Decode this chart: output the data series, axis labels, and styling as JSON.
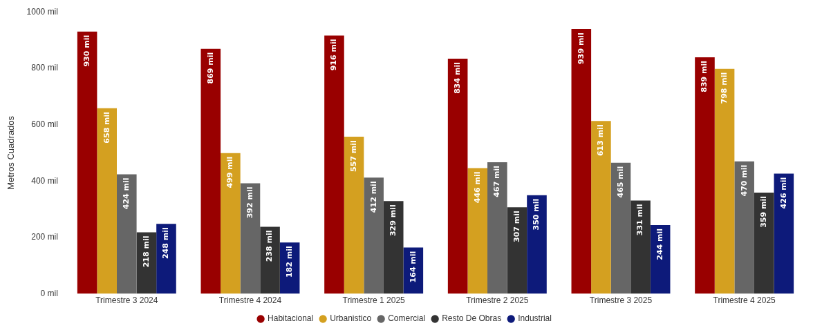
{
  "chart_data": {
    "type": "bar",
    "ylabel": "Metros Cuadrados",
    "categories": [
      "Trimestre 3 2024",
      "Trimestre 4 2024",
      "Trimestre 1 2025",
      "Trimestre 2 2025",
      "Trimestre 3 2025",
      "Trimestre 4 2025"
    ],
    "series": [
      {
        "name": "Habitacional",
        "color": "#990000",
        "values": [
          930,
          869,
          916,
          834,
          939,
          839
        ],
        "value_labels": [
          "930 mil",
          "869 mil",
          "916 mil",
          "834 mil",
          "939 mil",
          "839 mil"
        ]
      },
      {
        "name": "Urbanistico",
        "color": "#d4a020",
        "values": [
          658,
          499,
          557,
          446,
          613,
          798
        ],
        "value_labels": [
          "658 mil",
          "499 mil",
          "557 mil",
          "446 mil",
          "613 mil",
          "798 mil"
        ]
      },
      {
        "name": "Comercial",
        "color": "#666666",
        "values": [
          424,
          392,
          412,
          467,
          465,
          470
        ],
        "value_labels": [
          "424 mil",
          "392 mil",
          "412 mil",
          "467 mil",
          "465 mil",
          "470 mil"
        ]
      },
      {
        "name": "Resto De Obras",
        "color": "#333333",
        "values": [
          218,
          238,
          329,
          307,
          331,
          359
        ],
        "value_labels": [
          "218 mil",
          "238 mil",
          "329 mil",
          "307 mil",
          "331 mil",
          "359 mil"
        ]
      },
      {
        "name": "Industrial",
        "color": "#0d1a7a",
        "values": [
          248,
          182,
          164,
          350,
          244,
          426
        ],
        "value_labels": [
          "248 mil",
          "182 mil",
          "164 mil",
          "350 mil",
          "244 mil",
          "426 mil"
        ]
      }
    ],
    "ylim": [
      0,
      1000
    ],
    "yticks": [
      {
        "value": 0,
        "label": "0 mil"
      },
      {
        "value": 200,
        "label": "200 mil"
      },
      {
        "value": 400,
        "label": "400 mil"
      },
      {
        "value": 600,
        "label": "600 mil"
      },
      {
        "value": 800,
        "label": "800 mil"
      },
      {
        "value": 1000,
        "label": "1000 mil"
      }
    ],
    "grid": false,
    "legend": "bottom"
  }
}
